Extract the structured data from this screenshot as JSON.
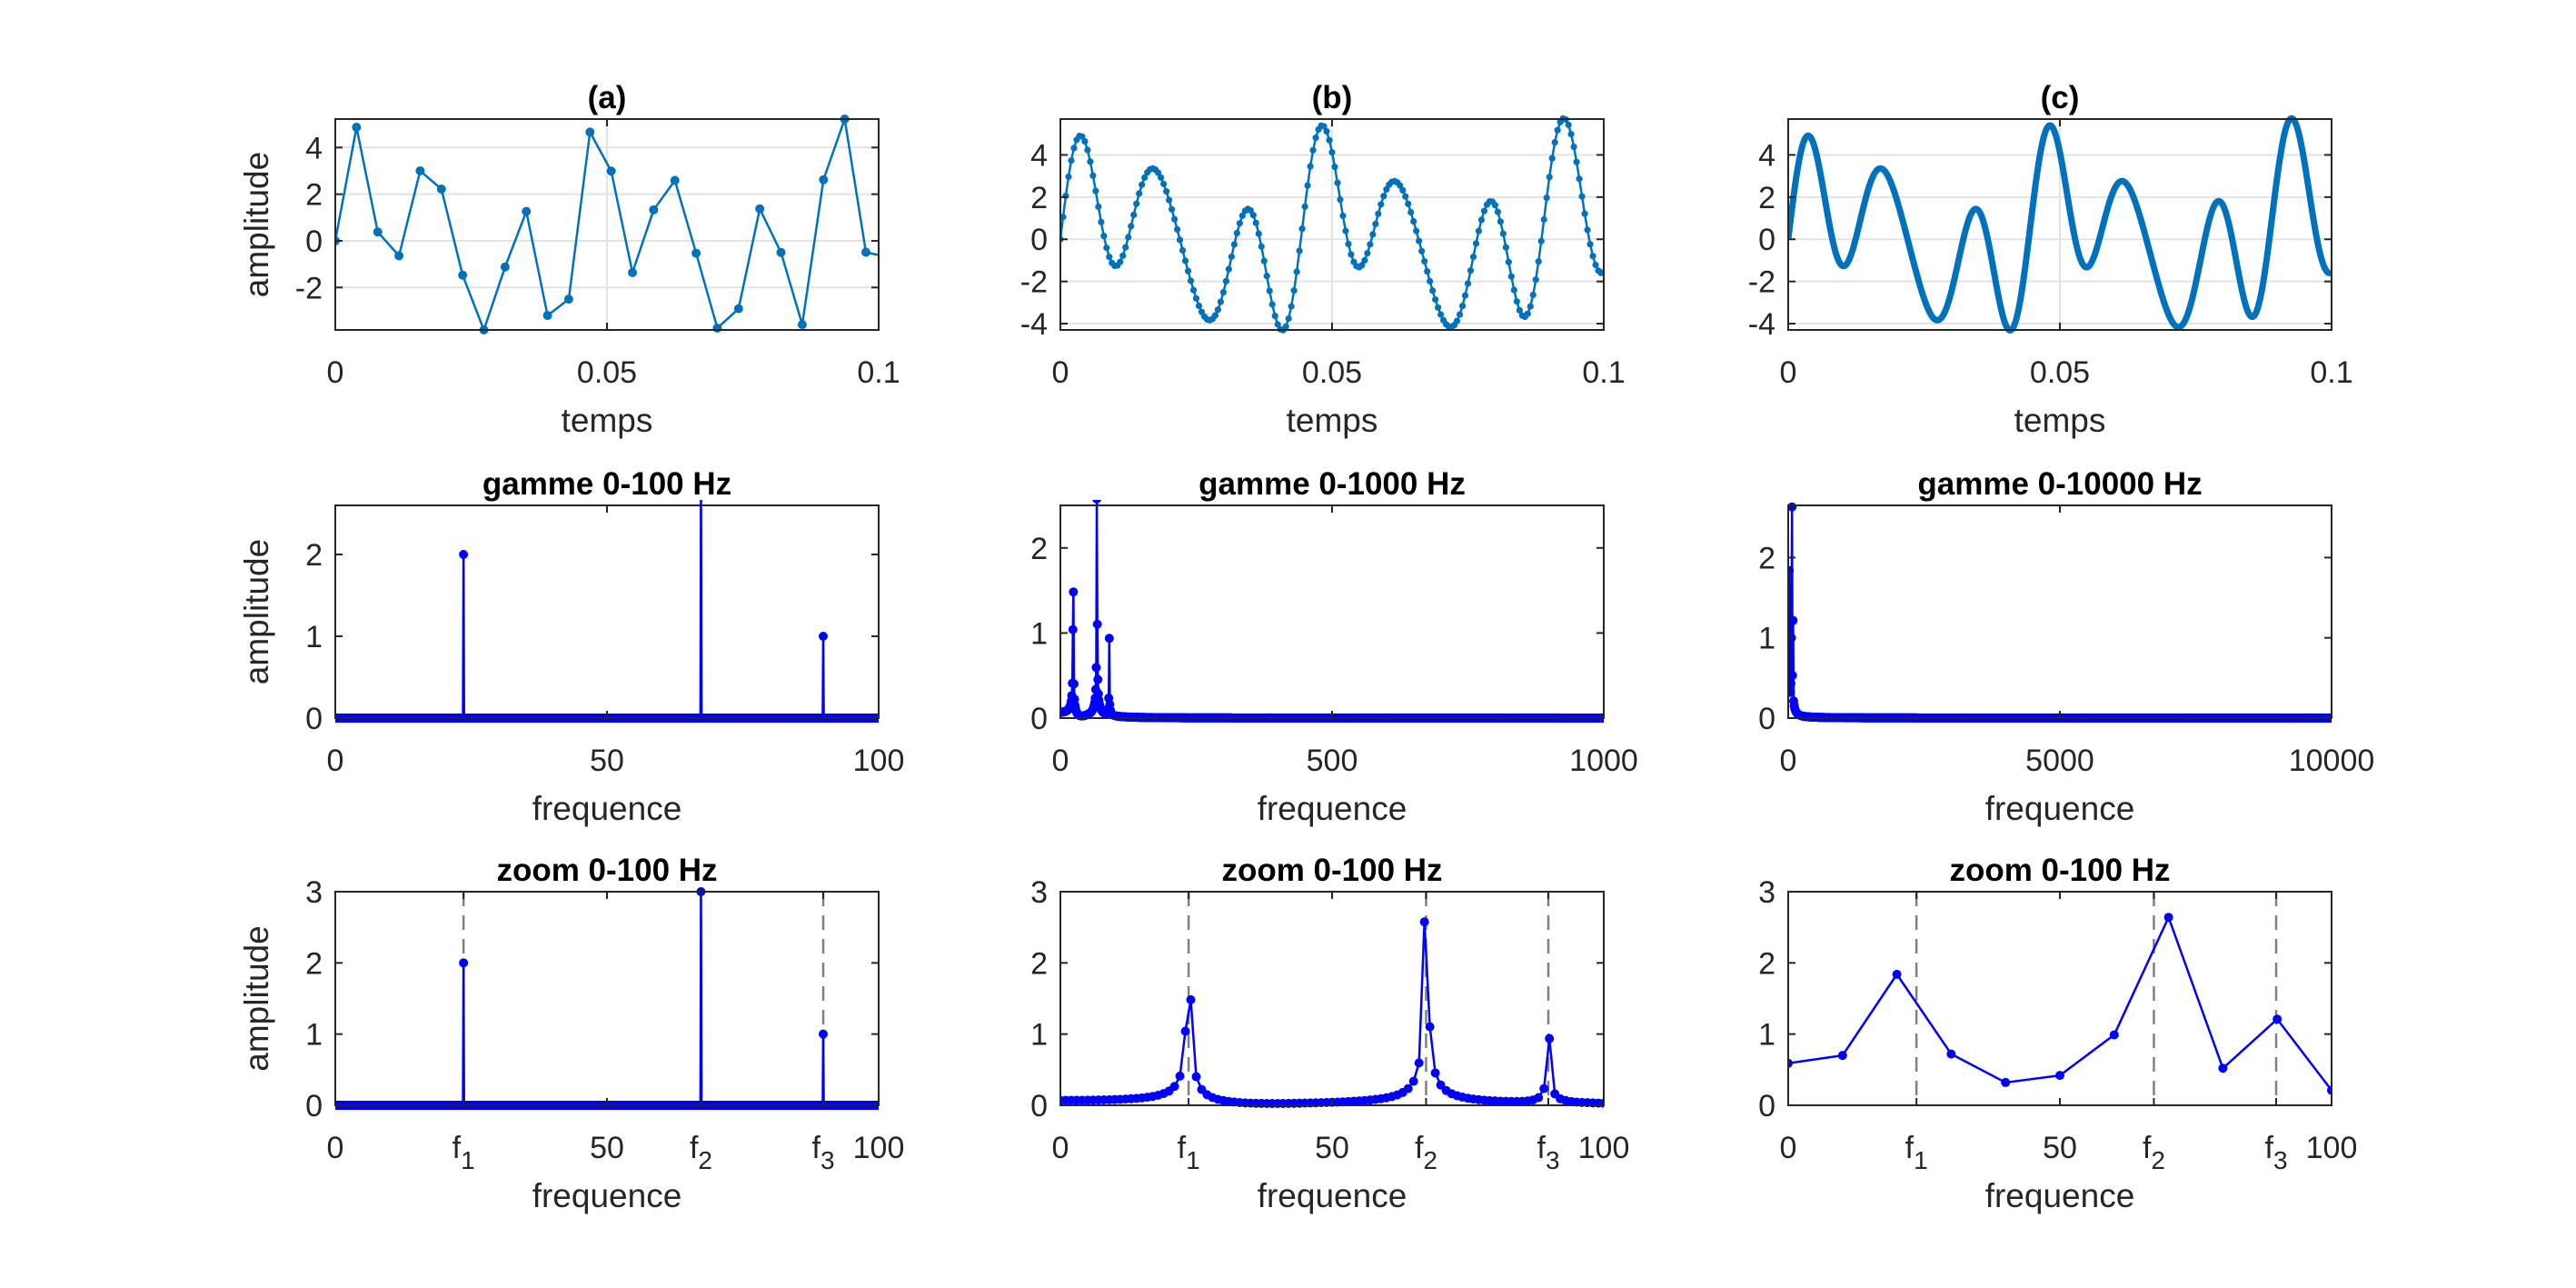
{
  "signal": {
    "components": [
      {
        "frequency_hz": 23.6,
        "amplitude": 2
      },
      {
        "frequency_hz": 67.3,
        "amplitude": 3
      },
      {
        "frequency_hz": 89.8,
        "amplitude": 1
      }
    ]
  },
  "chart_data": [
    {
      "type": "line",
      "title": "(a)",
      "xlabel": "temps",
      "ylabel": "amplitude",
      "xlim": [
        0,
        0.1
      ],
      "ylim": [
        -3.82,
        5.22
      ],
      "grid": true,
      "color": "#0072BD",
      "xticks": [
        {
          "value": 0,
          "label": "0"
        },
        {
          "value": 0.05,
          "label": "0.05"
        },
        {
          "value": 0.1,
          "label": "0.1"
        }
      ],
      "yticks": [
        {
          "value": -2,
          "label": "-2"
        },
        {
          "value": 0,
          "label": "0"
        },
        {
          "value": 2,
          "label": "2"
        },
        {
          "value": 4,
          "label": "4"
        }
      ],
      "sampling_rate_hz": 256,
      "values": [
        0,
        4.87,
        0.38,
        -0.64,
        3.0,
        2.22,
        -1.47,
        -3.82,
        -1.12,
        1.26,
        -3.2,
        -2.5,
        4.66,
        2.99,
        -1.36,
        1.33,
        2.59,
        -0.53,
        -3.74,
        -2.91,
        1.37,
        -0.5,
        -3.59,
        2.62,
        5.22,
        -0.49
      ]
    },
    {
      "type": "line",
      "title": "(b)",
      "xlabel": "temps",
      "ylabel": "",
      "xlim": [
        0,
        0.1
      ],
      "ylim": [
        -4.3,
        5.7
      ],
      "grid": true,
      "color": "#0072BD",
      "xticks": [
        {
          "value": 0,
          "label": "0"
        },
        {
          "value": 0.05,
          "label": "0.05"
        },
        {
          "value": 0.1,
          "label": "0.1"
        }
      ],
      "yticks": [
        {
          "value": -4,
          "label": "-4"
        },
        {
          "value": -2,
          "label": "-2"
        },
        {
          "value": 0,
          "label": "0"
        },
        {
          "value": 2,
          "label": "2"
        },
        {
          "value": 4,
          "label": "4"
        }
      ],
      "sampling_rate_hz": 2000
    },
    {
      "type": "line",
      "title": "(c)",
      "xlabel": "temps",
      "ylabel": "",
      "xlim": [
        0,
        0.1
      ],
      "ylim": [
        -4.3,
        5.7
      ],
      "grid": true,
      "color": "#0072BD",
      "xticks": [
        {
          "value": 0,
          "label": "0"
        },
        {
          "value": 0.05,
          "label": "0.05"
        },
        {
          "value": 0.1,
          "label": "0.1"
        }
      ],
      "yticks": [
        {
          "value": -4,
          "label": "-4"
        },
        {
          "value": -2,
          "label": "-2"
        },
        {
          "value": 0,
          "label": "0"
        },
        {
          "value": 2,
          "label": "2"
        },
        {
          "value": 4,
          "label": "4"
        }
      ],
      "sampling_rate_hz": 20000
    },
    {
      "type": "line",
      "title": "gamme 0-100 Hz",
      "xlabel": "frequence",
      "ylabel": "amplitude",
      "xlim": [
        0,
        100
      ],
      "ylim": [
        0,
        2.6
      ],
      "grid": false,
      "color": "#0000FF",
      "xticks": [
        {
          "value": 0,
          "label": "0"
        },
        {
          "value": 50,
          "label": "50"
        },
        {
          "value": 100,
          "label": "100"
        }
      ],
      "yticks": [
        {
          "value": 0,
          "label": "0"
        },
        {
          "value": 1,
          "label": "1"
        },
        {
          "value": 2,
          "label": "2"
        }
      ],
      "peaks": [
        1.72,
        2.58,
        0.85
      ],
      "spectrum_of": {
        "sampling_rate_hz": 256,
        "duration_s": 10
      }
    },
    {
      "type": "line",
      "title": "gamme 0-1000 Hz",
      "xlabel": "frequence",
      "ylabel": "",
      "xlim": [
        0,
        1000
      ],
      "ylim": [
        0,
        2.5
      ],
      "grid": false,
      "color": "#0000FF",
      "xticks": [
        {
          "value": 0,
          "label": "0"
        },
        {
          "value": 500,
          "label": "500"
        },
        {
          "value": 1000,
          "label": "1000"
        }
      ],
      "yticks": [
        {
          "value": 0,
          "label": "0"
        },
        {
          "value": 1,
          "label": "1"
        },
        {
          "value": 2,
          "label": "2"
        }
      ],
      "peaks": [
        1.42,
        2.5,
        0.9
      ],
      "spectrum_of": {
        "sampling_rate_hz": 2000,
        "duration_s": 1
      }
    },
    {
      "type": "line",
      "title": "gamme 0-10000 Hz",
      "xlabel": "frequence",
      "ylabel": "",
      "xlim": [
        0,
        10000
      ],
      "ylim": [
        0,
        2.65
      ],
      "grid": false,
      "color": "#0000FF",
      "xticks": [
        {
          "value": 0,
          "label": "0"
        },
        {
          "value": 5000,
          "label": "5000"
        },
        {
          "value": 10000,
          "label": "10000"
        }
      ],
      "yticks": [
        {
          "value": 0,
          "label": "0"
        },
        {
          "value": 1,
          "label": "1"
        },
        {
          "value": 2,
          "label": "2"
        }
      ],
      "peaks": [
        1.84,
        2.64,
        1.21
      ],
      "spectrum_of": {
        "sampling_rate_hz": 20000,
        "duration_s": 0.1
      }
    },
    {
      "type": "line",
      "title": "zoom 0-100 Hz",
      "xlabel": "frequence",
      "ylabel": "amplitude",
      "xlim": [
        0,
        100
      ],
      "ylim": [
        0,
        3
      ],
      "grid": false,
      "color": "#0000FF",
      "xticks": [
        {
          "value": 0,
          "label": "0"
        },
        {
          "value": 23.6,
          "label": "f",
          "sub": "1"
        },
        {
          "value": 50,
          "label": "50"
        },
        {
          "value": 67.3,
          "label": "f",
          "sub": "2"
        },
        {
          "value": 89.8,
          "label": "f",
          "sub": "3"
        },
        {
          "value": 100,
          "label": "100"
        }
      ],
      "yticks": [
        {
          "value": 0,
          "label": "0"
        },
        {
          "value": 1,
          "label": "1"
        },
        {
          "value": 2,
          "label": "2"
        },
        {
          "value": 3,
          "label": "3"
        }
      ],
      "reference_lines": [
        23.6,
        67.3,
        89.8
      ],
      "spectrum_of": {
        "sampling_rate_hz": 256,
        "duration_s": 10
      }
    },
    {
      "type": "line",
      "title": "zoom 0-100 Hz",
      "xlabel": "frequence",
      "ylabel": "",
      "xlim": [
        0,
        100
      ],
      "ylim": [
        0,
        3
      ],
      "grid": false,
      "color": "#0000FF",
      "xticks": [
        {
          "value": 0,
          "label": "0"
        },
        {
          "value": 23.6,
          "label": "f",
          "sub": "1"
        },
        {
          "value": 50,
          "label": "50"
        },
        {
          "value": 67.3,
          "label": "f",
          "sub": "2"
        },
        {
          "value": 89.8,
          "label": "f",
          "sub": "3"
        },
        {
          "value": 100,
          "label": "100"
        }
      ],
      "yticks": [
        {
          "value": 0,
          "label": "0"
        },
        {
          "value": 1,
          "label": "1"
        },
        {
          "value": 2,
          "label": "2"
        },
        {
          "value": 3,
          "label": "3"
        }
      ],
      "reference_lines": [
        23.6,
        67.3,
        89.8
      ],
      "spectrum_of": {
        "sampling_rate_hz": 2000,
        "duration_s": 1
      }
    },
    {
      "type": "line",
      "title": "zoom 0-100 Hz",
      "xlabel": "frequence",
      "ylabel": "",
      "xlim": [
        0,
        100
      ],
      "ylim": [
        0,
        3
      ],
      "grid": false,
      "color": "#0000FF",
      "xticks": [
        {
          "value": 0,
          "label": "0"
        },
        {
          "value": 23.6,
          "label": "f",
          "sub": "1"
        },
        {
          "value": 50,
          "label": "50"
        },
        {
          "value": 67.3,
          "label": "f",
          "sub": "2"
        },
        {
          "value": 89.8,
          "label": "f",
          "sub": "3"
        },
        {
          "value": 100,
          "label": "100"
        }
      ],
      "yticks": [
        {
          "value": 0,
          "label": "0"
        },
        {
          "value": 1,
          "label": "1"
        },
        {
          "value": 2,
          "label": "2"
        },
        {
          "value": 3,
          "label": "3"
        }
      ],
      "reference_lines": [
        23.6,
        67.3,
        89.8
      ],
      "x": [
        0,
        10,
        20,
        30,
        40,
        50,
        60,
        70,
        80,
        90,
        100
      ],
      "values": [
        0.59,
        0.7,
        1.84,
        0.72,
        0.32,
        0.42,
        0.99,
        2.64,
        0.52,
        1.21,
        0.21
      ]
    }
  ]
}
